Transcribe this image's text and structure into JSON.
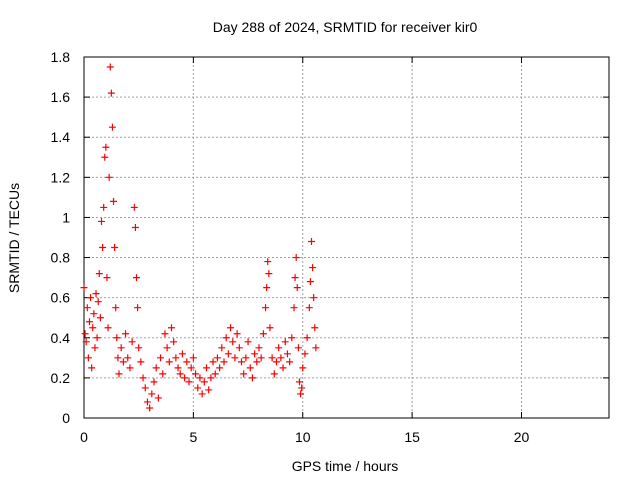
{
  "chart_data": {
    "type": "scatter",
    "title": "Day 288 of 2024, SRMTID for receiver kir0",
    "xlabel": "GPS time / hours",
    "ylabel": "SRMTID / TECUs",
    "xlim": [
      0,
      24
    ],
    "ylim": [
      0,
      1.8
    ],
    "xticks": [
      0,
      5,
      10,
      15,
      20
    ],
    "yticks": [
      0,
      0.2,
      0.4,
      0.6,
      0.8,
      1,
      1.2,
      1.4,
      1.6,
      1.8
    ],
    "ytick_labels": [
      "0",
      "0.2",
      "0.4",
      "0.6",
      "0.8",
      "1",
      "1.2",
      "1.4",
      "1.6",
      "1.8"
    ],
    "grid": true,
    "marker": "+",
    "colors": {
      "series": "#ff0000",
      "grid": "#a0a0a0",
      "axis": "#000000"
    },
    "series": [
      {
        "name": "kir0",
        "points": [
          [
            0.0,
            0.65
          ],
          [
            0.05,
            0.42
          ],
          [
            0.1,
            0.38
          ],
          [
            0.15,
            0.55
          ],
          [
            0.2,
            0.3
          ],
          [
            0.25,
            0.48
          ],
          [
            0.3,
            0.6
          ],
          [
            0.35,
            0.25
          ],
          [
            0.4,
            0.45
          ],
          [
            0.45,
            0.52
          ],
          [
            0.5,
            0.35
          ],
          [
            0.55,
            0.62
          ],
          [
            0.6,
            0.4
          ],
          [
            0.65,
            0.58
          ],
          [
            0.7,
            0.72
          ],
          [
            0.75,
            0.5
          ],
          [
            0.8,
            0.98
          ],
          [
            0.85,
            0.85
          ],
          [
            0.9,
            1.05
          ],
          [
            0.95,
            1.3
          ],
          [
            1.0,
            1.35
          ],
          [
            1.05,
            0.7
          ],
          [
            1.1,
            0.45
          ],
          [
            1.15,
            1.2
          ],
          [
            1.2,
            1.75
          ],
          [
            1.25,
            1.62
          ],
          [
            1.3,
            1.45
          ],
          [
            1.35,
            1.08
          ],
          [
            1.4,
            0.85
          ],
          [
            1.45,
            0.55
          ],
          [
            1.5,
            0.4
          ],
          [
            1.55,
            0.3
          ],
          [
            1.6,
            0.22
          ],
          [
            1.7,
            0.35
          ],
          [
            1.8,
            0.28
          ],
          [
            1.9,
            0.42
          ],
          [
            2.0,
            0.3
          ],
          [
            2.1,
            0.25
          ],
          [
            2.2,
            0.38
          ],
          [
            2.3,
            1.05
          ],
          [
            2.35,
            0.95
          ],
          [
            2.4,
            0.7
          ],
          [
            2.45,
            0.55
          ],
          [
            2.5,
            0.35
          ],
          [
            2.6,
            0.28
          ],
          [
            2.7,
            0.2
          ],
          [
            2.8,
            0.15
          ],
          [
            2.9,
            0.08
          ],
          [
            3.0,
            0.05
          ],
          [
            3.1,
            0.12
          ],
          [
            3.2,
            0.18
          ],
          [
            3.3,
            0.25
          ],
          [
            3.4,
            0.1
          ],
          [
            3.5,
            0.3
          ],
          [
            3.6,
            0.22
          ],
          [
            3.7,
            0.42
          ],
          [
            3.8,
            0.35
          ],
          [
            3.9,
            0.28
          ],
          [
            4.0,
            0.45
          ],
          [
            4.1,
            0.38
          ],
          [
            4.2,
            0.3
          ],
          [
            4.3,
            0.25
          ],
          [
            4.4,
            0.22
          ],
          [
            4.5,
            0.32
          ],
          [
            4.6,
            0.2
          ],
          [
            4.7,
            0.28
          ],
          [
            4.8,
            0.18
          ],
          [
            4.9,
            0.25
          ],
          [
            5.0,
            0.3
          ],
          [
            5.1,
            0.22
          ],
          [
            5.2,
            0.15
          ],
          [
            5.3,
            0.2
          ],
          [
            5.4,
            0.12
          ],
          [
            5.5,
            0.18
          ],
          [
            5.6,
            0.25
          ],
          [
            5.7,
            0.14
          ],
          [
            5.8,
            0.2
          ],
          [
            5.9,
            0.28
          ],
          [
            6.0,
            0.22
          ],
          [
            6.1,
            0.3
          ],
          [
            6.2,
            0.25
          ],
          [
            6.3,
            0.35
          ],
          [
            6.4,
            0.28
          ],
          [
            6.5,
            0.4
          ],
          [
            6.6,
            0.32
          ],
          [
            6.7,
            0.45
          ],
          [
            6.8,
            0.38
          ],
          [
            6.9,
            0.3
          ],
          [
            7.0,
            0.42
          ],
          [
            7.1,
            0.35
          ],
          [
            7.2,
            0.28
          ],
          [
            7.3,
            0.22
          ],
          [
            7.4,
            0.3
          ],
          [
            7.5,
            0.38
          ],
          [
            7.6,
            0.25
          ],
          [
            7.7,
            0.2
          ],
          [
            7.8,
            0.32
          ],
          [
            7.9,
            0.28
          ],
          [
            8.0,
            0.35
          ],
          [
            8.1,
            0.3
          ],
          [
            8.2,
            0.42
          ],
          [
            8.3,
            0.55
          ],
          [
            8.35,
            0.65
          ],
          [
            8.4,
            0.78
          ],
          [
            8.45,
            0.72
          ],
          [
            8.5,
            0.45
          ],
          [
            8.6,
            0.3
          ],
          [
            8.7,
            0.22
          ],
          [
            8.8,
            0.28
          ],
          [
            8.9,
            0.35
          ],
          [
            9.0,
            0.3
          ],
          [
            9.1,
            0.25
          ],
          [
            9.2,
            0.38
          ],
          [
            9.3,
            0.32
          ],
          [
            9.4,
            0.28
          ],
          [
            9.5,
            0.4
          ],
          [
            9.6,
            0.55
          ],
          [
            9.65,
            0.7
          ],
          [
            9.7,
            0.8
          ],
          [
            9.75,
            0.65
          ],
          [
            9.8,
            0.35
          ],
          [
            9.85,
            0.18
          ],
          [
            9.9,
            0.12
          ],
          [
            9.95,
            0.15
          ],
          [
            10.0,
            0.25
          ],
          [
            10.1,
            0.32
          ],
          [
            10.2,
            0.4
          ],
          [
            10.3,
            0.55
          ],
          [
            10.35,
            0.68
          ],
          [
            10.4,
            0.88
          ],
          [
            10.45,
            0.75
          ],
          [
            10.5,
            0.6
          ],
          [
            10.55,
            0.45
          ],
          [
            10.6,
            0.35
          ]
        ]
      }
    ]
  }
}
